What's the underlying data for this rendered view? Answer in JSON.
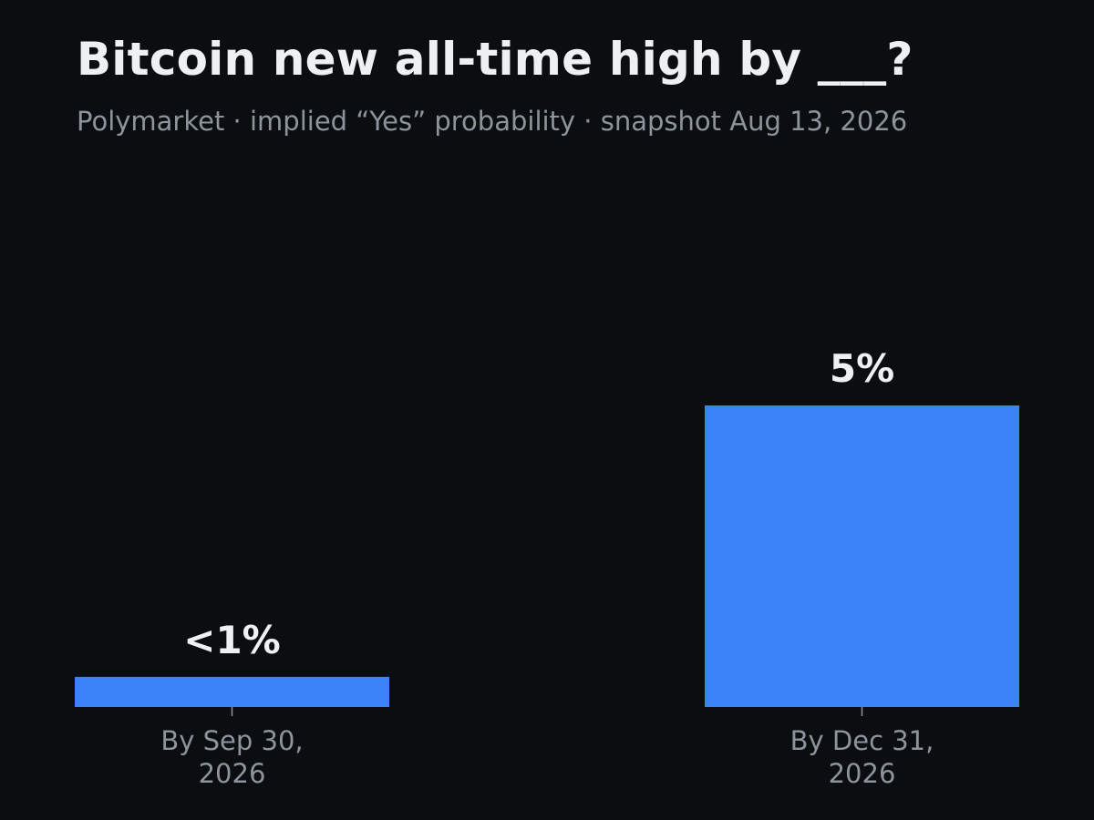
{
  "title": "Bitcoin new all-time high by ___?",
  "subtitle": "Polymarket · implied “Yes” probability · snapshot Aug 13, 2026",
  "colors": {
    "background": "#0b0e11",
    "bar": "#3b82f6",
    "title": "#eef0f4",
    "muted": "#8e939c",
    "label": "#eef0f4"
  },
  "chart_data": {
    "type": "bar",
    "title": "Bitcoin new all-time high by ___?",
    "subtitle": "Polymarket · implied “Yes” probability · snapshot Aug 13, 2026",
    "xlabel": "",
    "ylabel": "",
    "categories": [
      [
        "By Sep 30,",
        "2026"
      ],
      [
        "By Dec 31,",
        "2026"
      ]
    ],
    "values": [
      0.5,
      5
    ],
    "data_labels": [
      "<1%",
      "5%"
    ],
    "unit": "%",
    "ylim": [
      0,
      5.8
    ],
    "grid": false,
    "legend": "none"
  }
}
